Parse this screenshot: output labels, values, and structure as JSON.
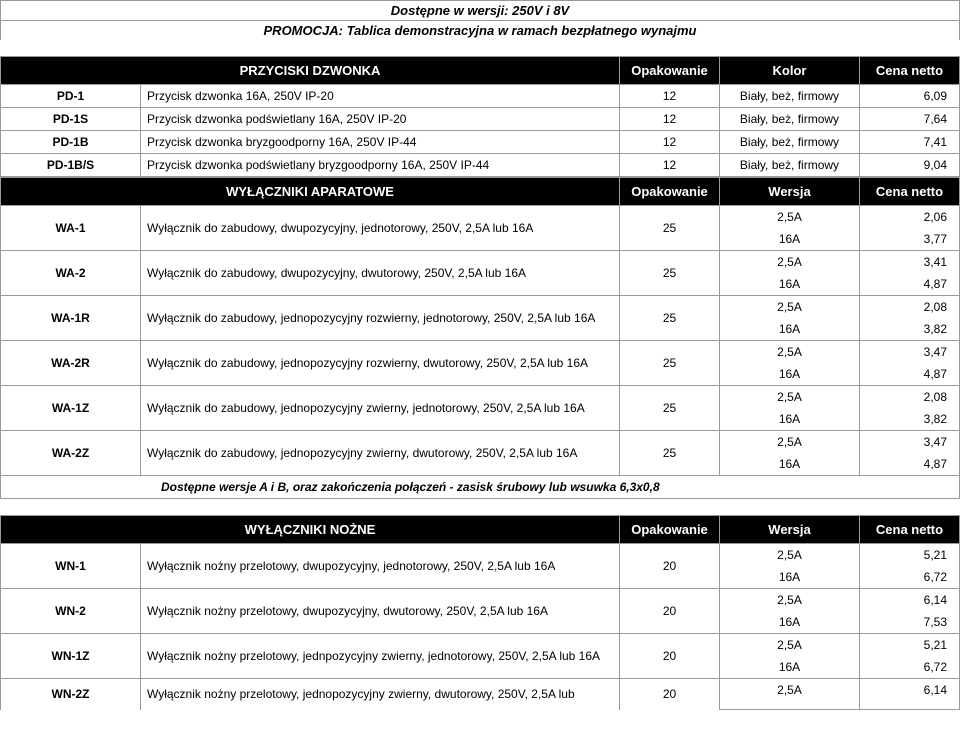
{
  "banners": {
    "line1": "Dostępne w wersji: 250V i 8V",
    "line2": "PROMOCJA: Tablica demonstracyjna w ramach bezpłatnego wynajmu"
  },
  "section1": {
    "title": "PRZYCISKI DZWONKA",
    "col_pack": "Opakowanie",
    "col_ver": "Kolor",
    "col_price": "Cena netto",
    "rows": [
      {
        "code": "PD-1",
        "desc": "Przycisk dzwonka 16A, 250V IP-20",
        "pack": "12",
        "ver": "Biały, beż, firmowy",
        "price": "6,09"
      },
      {
        "code": "PD-1S",
        "desc": "Przycisk dzwonka podświetlany 16A, 250V IP-20",
        "pack": "12",
        "ver": "Biały, beż, firmowy",
        "price": "7,64"
      },
      {
        "code": "PD-1B",
        "desc": "Przycisk dzwonka bryzgoodporny 16A, 250V IP-44",
        "pack": "12",
        "ver": "Biały, beż, firmowy",
        "price": "7,41"
      },
      {
        "code": "PD-1B/S",
        "desc": "Przycisk dzwonka podświetlany bryzgoodporny 16A, 250V IP-44",
        "pack": "12",
        "ver": "Biały, beż, firmowy",
        "price": "9,04"
      }
    ]
  },
  "section2": {
    "title": "WYŁĄCZNIKI APARATOWE",
    "col_pack": "Opakowanie",
    "col_ver": "Wersja",
    "col_price": "Cena netto",
    "rows": [
      {
        "code": "WA-1",
        "desc": "Wyłącznik do zabudowy, dwupozycyjny, jednotorowy, 250V, 2,5A lub 16A",
        "pack": "25",
        "v1": "2,5A",
        "p1": "2,06",
        "v2": "16A",
        "p2": "3,77"
      },
      {
        "code": "WA-2",
        "desc": "Wyłącznik do zabudowy, dwupozycyjny, dwutorowy, 250V, 2,5A lub 16A",
        "pack": "25",
        "v1": "2,5A",
        "p1": "3,41",
        "v2": "16A",
        "p2": "4,87"
      },
      {
        "code": "WA-1R",
        "desc": "Wyłącznik do zabudowy, jednopozycyjny rozwierny, jednotorowy, 250V, 2,5A lub 16A",
        "pack": "25",
        "v1": "2,5A",
        "p1": "2,08",
        "v2": "16A",
        "p2": "3,82"
      },
      {
        "code": "WA-2R",
        "desc": "Wyłącznik do zabudowy, jednopozycyjny rozwierny, dwutorowy, 250V, 2,5A lub 16A",
        "pack": "25",
        "v1": "2,5A",
        "p1": "3,47",
        "v2": "16A",
        "p2": "4,87"
      },
      {
        "code": "WA-1Z",
        "desc": "Wyłącznik do zabudowy, jednopozycyjny zwierny, jednotorowy, 250V, 2,5A lub 16A",
        "pack": "25",
        "v1": "2,5A",
        "p1": "2,08",
        "v2": "16A",
        "p2": "3,82"
      },
      {
        "code": "WA-2Z",
        "desc": "Wyłącznik do zabudowy, jednopozycyjny zwierny, dwutorowy, 250V, 2,5A lub 16A",
        "pack": "25",
        "v1": "2,5A",
        "p1": "3,47",
        "v2": "16A",
        "p2": "4,87"
      }
    ],
    "note": "Dostępne wersje A i B, oraz zakończenia połączeń - zasisk śrubowy lub wsuwka 6,3x0,8"
  },
  "section3": {
    "title": "WYŁĄCZNIKI NOŻNE",
    "col_pack": "Opakowanie",
    "col_ver": "Wersja",
    "col_price": "Cena netto",
    "rows": [
      {
        "code": "WN-1",
        "desc": "Wyłącznik nożny przelotowy, dwupozycyjny, jednotorowy, 250V, 2,5A lub 16A",
        "pack": "20",
        "v1": "2,5A",
        "p1": "5,21",
        "v2": "16A",
        "p2": "6,72"
      },
      {
        "code": "WN-2",
        "desc": "Wyłącznik nożny przelotowy, dwupozycyjny, dwutorowy, 250V, 2,5A lub 16A",
        "pack": "20",
        "v1": "2,5A",
        "p1": "6,14",
        "v2": "16A",
        "p2": "7,53"
      },
      {
        "code": "WN-1Z",
        "desc": "Wyłącznik nożny przelotowy, jednpozycyjny zwierny, jednotorowy, 250V, 2,5A lub 16A",
        "pack": "20",
        "v1": "2,5A",
        "p1": "5,21",
        "v2": "16A",
        "p2": "6,72"
      },
      {
        "code": "WN-2Z",
        "desc": "Wyłącznik nożny przelotowy, jednopozycyjny zwierny, dwutorowy, 250V, 2,5A lub",
        "pack": "20",
        "v1": "2,5A",
        "p1": "6,14",
        "v2": "",
        "p2": ""
      }
    ]
  }
}
